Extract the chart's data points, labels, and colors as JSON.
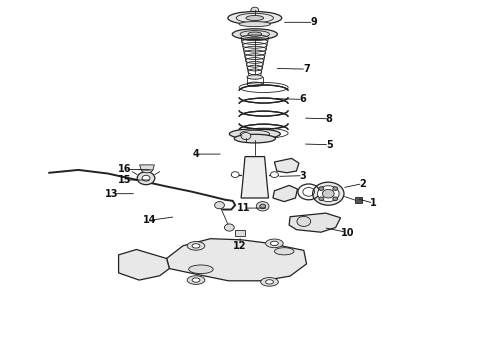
{
  "background_color": "#ffffff",
  "figsize": [
    4.9,
    3.6
  ],
  "dpi": 100,
  "line_color": "#222222",
  "label_color": "#111111",
  "label_fontsize": 7,
  "parts_labels": [
    [
      9,
      0.575,
      0.938,
      0.64,
      0.938
    ],
    [
      7,
      0.56,
      0.81,
      0.625,
      0.808
    ],
    [
      6,
      0.558,
      0.726,
      0.618,
      0.724
    ],
    [
      8,
      0.618,
      0.672,
      0.672,
      0.67
    ],
    [
      5,
      0.618,
      0.6,
      0.672,
      0.598
    ],
    [
      4,
      0.455,
      0.572,
      0.4,
      0.572
    ],
    [
      3,
      0.565,
      0.51,
      0.618,
      0.512
    ],
    [
      2,
      0.698,
      0.478,
      0.74,
      0.49
    ],
    [
      1,
      0.728,
      0.448,
      0.762,
      0.436
    ],
    [
      10,
      0.66,
      0.368,
      0.71,
      0.354
    ],
    [
      11,
      0.548,
      0.422,
      0.498,
      0.422
    ],
    [
      12,
      0.49,
      0.345,
      0.49,
      0.318
    ],
    [
      13,
      0.278,
      0.462,
      0.228,
      0.462
    ],
    [
      14,
      0.358,
      0.398,
      0.305,
      0.388
    ],
    [
      15,
      0.31,
      0.5,
      0.255,
      0.5
    ],
    [
      16,
      0.31,
      0.528,
      0.255,
      0.53
    ]
  ]
}
